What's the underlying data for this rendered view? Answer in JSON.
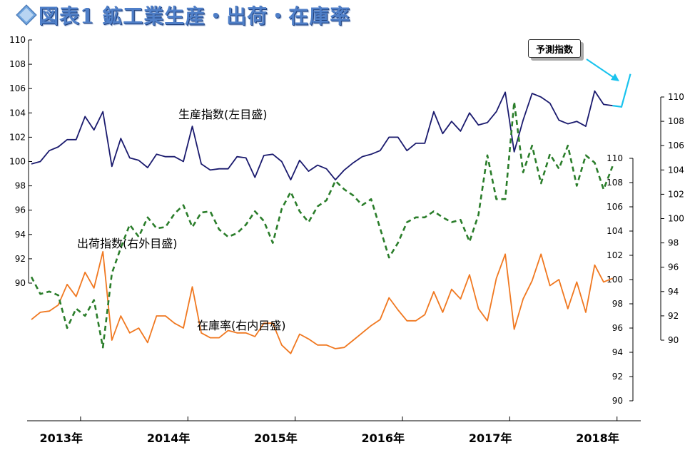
{
  "header": {
    "title": "図表1 鉱工業生産・出荷・在庫率",
    "diamond_color": "#6fa3dc"
  },
  "chart_data": {
    "type": "line",
    "title": "図表1 鉱工業生産・出荷・在庫率",
    "x_labels": [
      "2013年",
      "2014年",
      "2015年",
      "2016年",
      "2017年",
      "2018年"
    ],
    "x_start": "2013-01",
    "annotations": {
      "production": "生産指数(左目盛)",
      "shipments": "出荷指数(右外目盛)",
      "inventory": "在庫率(右内目盛)",
      "forecast": "予測指数"
    },
    "axes": {
      "left": {
        "min": 90,
        "max": 110,
        "ticks": [
          90,
          92,
          94,
          96,
          98,
          100,
          102,
          104,
          106,
          108,
          110
        ]
      },
      "right_outer": {
        "min": 90,
        "max": 110,
        "ticks": [
          90,
          92,
          94,
          96,
          98,
          100,
          102,
          104,
          106,
          108,
          110
        ]
      },
      "right_inner": {
        "min": 90,
        "max": 110,
        "ticks": [
          90,
          92,
          94,
          96,
          98,
          100,
          102,
          104,
          106,
          108,
          110
        ]
      }
    },
    "series": [
      {
        "name": "生産指数(左目盛)",
        "axis": "left",
        "color": "#1a1a6e",
        "style": "solid",
        "values": [
          99.8,
          100.0,
          100.9,
          101.2,
          101.8,
          101.8,
          103.7,
          102.6,
          104.1,
          99.6,
          101.9,
          100.3,
          100.1,
          99.5,
          100.6,
          100.4,
          100.4,
          100.0,
          102.9,
          99.8,
          99.3,
          99.4,
          99.4,
          100.4,
          100.3,
          98.7,
          100.5,
          100.6,
          100.0,
          98.5,
          100.1,
          99.2,
          99.7,
          99.4,
          98.5,
          99.3,
          99.9,
          100.4,
          100.6,
          100.9,
          102.0,
          102.0,
          100.9,
          101.5,
          101.5,
          104.1,
          102.3,
          103.3,
          102.5,
          104.0,
          103.0,
          103.2,
          104.1,
          105.7,
          100.8,
          103.4,
          105.6,
          105.3,
          104.8,
          103.4,
          103.1,
          103.3,
          102.9,
          105.8,
          104.7,
          104.6
        ],
        "forecast_values": [
          104.6,
          104.5,
          107.2
        ]
      },
      {
        "name": "出荷指数(右外目盛)",
        "axis": "right_outer",
        "color": "#f07820",
        "style": "solid",
        "values": [
          96.7,
          97.3,
          97.4,
          97.9,
          99.6,
          98.6,
          100.6,
          99.3,
          102.3,
          95.0,
          97.0,
          95.6,
          96.0,
          94.8,
          97.0,
          97.0,
          96.4,
          96.0,
          99.4,
          95.6,
          95.2,
          95.2,
          95.8,
          95.6,
          95.6,
          95.3,
          96.4,
          96.4,
          94.6,
          93.9,
          95.5,
          95.1,
          94.6,
          94.6,
          94.3,
          94.4,
          95.0,
          95.6,
          96.2,
          96.7,
          98.5,
          97.5,
          96.6,
          96.6,
          97.1,
          99.0,
          97.3,
          99.2,
          98.4,
          100.4,
          97.6,
          96.6,
          100.1,
          102.1,
          95.9,
          98.4,
          99.9,
          102.1,
          99.5,
          100.0,
          97.6,
          99.8,
          97.3,
          101.2,
          99.8,
          100.1
        ]
      },
      {
        "name": "在庫率(右内目盛)",
        "axis": "right_inner",
        "color": "#2a7d2a",
        "style": "dashed",
        "values": [
          95.2,
          93.8,
          94.0,
          93.7,
          91.0,
          92.6,
          92.0,
          93.3,
          89.4,
          95.5,
          97.6,
          99.5,
          98.5,
          100.1,
          99.2,
          99.3,
          100.4,
          101.1,
          99.3,
          100.5,
          100.6,
          99.1,
          98.5,
          98.8,
          99.5,
          100.6,
          99.8,
          98.0,
          100.8,
          102.2,
          100.6,
          99.7,
          101.0,
          101.5,
          103.1,
          102.4,
          101.9,
          101.1,
          101.6,
          99.2,
          96.8,
          98.0,
          99.7,
          100.1,
          100.1,
          100.6,
          100.1,
          99.7,
          99.9,
          98.1,
          100.3,
          105.2,
          101.6,
          101.6,
          109.6,
          103.8,
          106.0,
          102.9,
          105.3,
          104.1,
          106.0,
          102.7,
          105.2,
          104.6,
          102.4,
          104.3
        ]
      }
    ]
  }
}
